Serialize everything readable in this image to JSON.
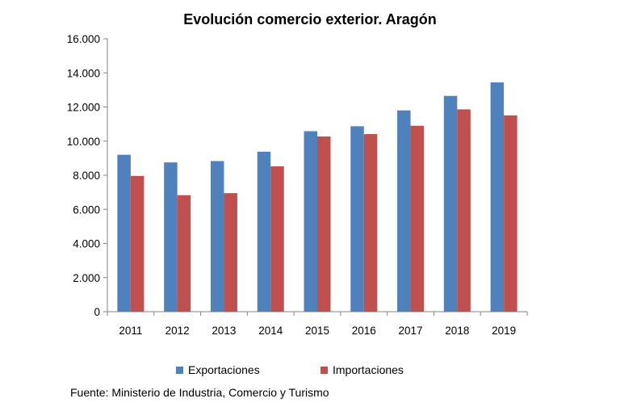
{
  "chart_data": {
    "type": "bar",
    "title": "Evolución comercio exterior. Aragón",
    "categories": [
      "2011",
      "2012",
      "2013",
      "2014",
      "2015",
      "2016",
      "2017",
      "2018",
      "2019"
    ],
    "series": [
      {
        "name": "Exportaciones",
        "color": "#4F81BD",
        "values": [
          9200,
          8750,
          8830,
          9380,
          10580,
          10870,
          11800,
          12650,
          13440
        ]
      },
      {
        "name": "Importaciones",
        "color": "#C0504D",
        "values": [
          7960,
          6830,
          6950,
          8520,
          10270,
          10410,
          10900,
          11860,
          11510
        ]
      }
    ],
    "ylim": [
      0,
      16000
    ],
    "yticks": [
      0,
      2000,
      4000,
      6000,
      8000,
      10000,
      12000,
      14000,
      16000
    ],
    "ytick_labels": [
      "0",
      "2.000",
      "4.000",
      "6.000",
      "8.000",
      "10.000",
      "12.000",
      "14.000",
      "16.000"
    ],
    "xlabel": "",
    "ylabel": "",
    "grid": false,
    "legend_position": "bottom"
  },
  "source_note": "Fuente: Ministerio de Industria, Comercio y Turismo"
}
